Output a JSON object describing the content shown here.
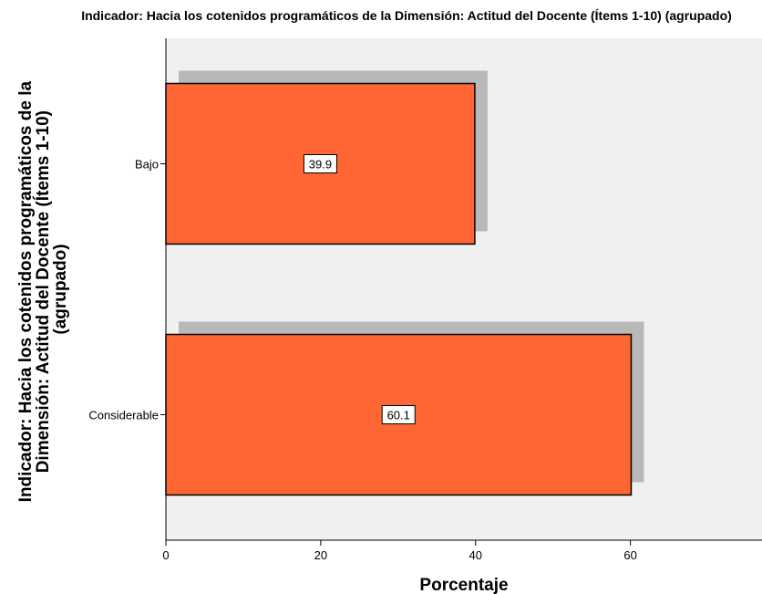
{
  "chart_data": {
    "type": "bar",
    "orientation": "horizontal",
    "title": "Indicador: Hacia los cotenidos programáticos de la Dimensión: Actitud del Docente (Ítems 1-10) (agrupado)",
    "xlabel": "Porcentaje",
    "ylabel_lines": [
      "Indicador: Hacia los cotenidos programáticos de la",
      "Dimensión: Actitud del Docente (Ítems 1-10)",
      "(agrupado)"
    ],
    "categories": [
      "Bajo",
      "Considerable"
    ],
    "values": [
      39.9,
      60.1
    ],
    "data_labels": [
      "39.9",
      "60.1"
    ],
    "xlim": [
      0,
      77
    ],
    "xticks": [
      0,
      20,
      40,
      60
    ],
    "xtick_labels": [
      "0",
      "20",
      "40",
      "60"
    ],
    "grid": false,
    "legend": "none",
    "colors": {
      "bar": "#ff6633",
      "shadow": "#b8b8b8",
      "plot_background": "#f0f0f0",
      "outline": "#000000"
    }
  }
}
